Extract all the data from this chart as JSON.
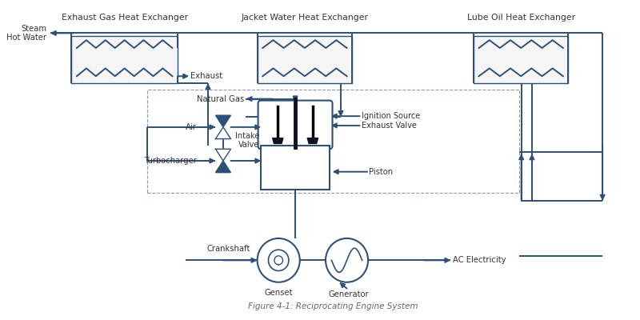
{
  "title": "Figure 4-1: Reciprocating Engine System",
  "bg_color": "#ffffff",
  "lc": "#2d5078",
  "tc": "#333333",
  "he_fill": "#f5f5f5",
  "labels": {
    "exhaust_gas_he": "Exhaust Gas Heat Exchanger",
    "jacket_water_he": "Jacket Water Heat Exchanger",
    "lube_oil_he": "Lube Oil Heat Exchanger",
    "steam_hot_water": "Steam\nHot Water",
    "exhaust": "Exhaust",
    "natural_gas": "Natural Gas",
    "air": "Air",
    "turbocharger": "Turbocharger",
    "intake_valve": "Intake\nValve",
    "ignition_source": "Ignition Source",
    "exhaust_valve": "Exhaust Valve",
    "piston": "Piston",
    "crankshaft": "Crankshaft",
    "genset": "Genset",
    "generator": "Generator",
    "ac_electricity": "AC Electricity"
  }
}
